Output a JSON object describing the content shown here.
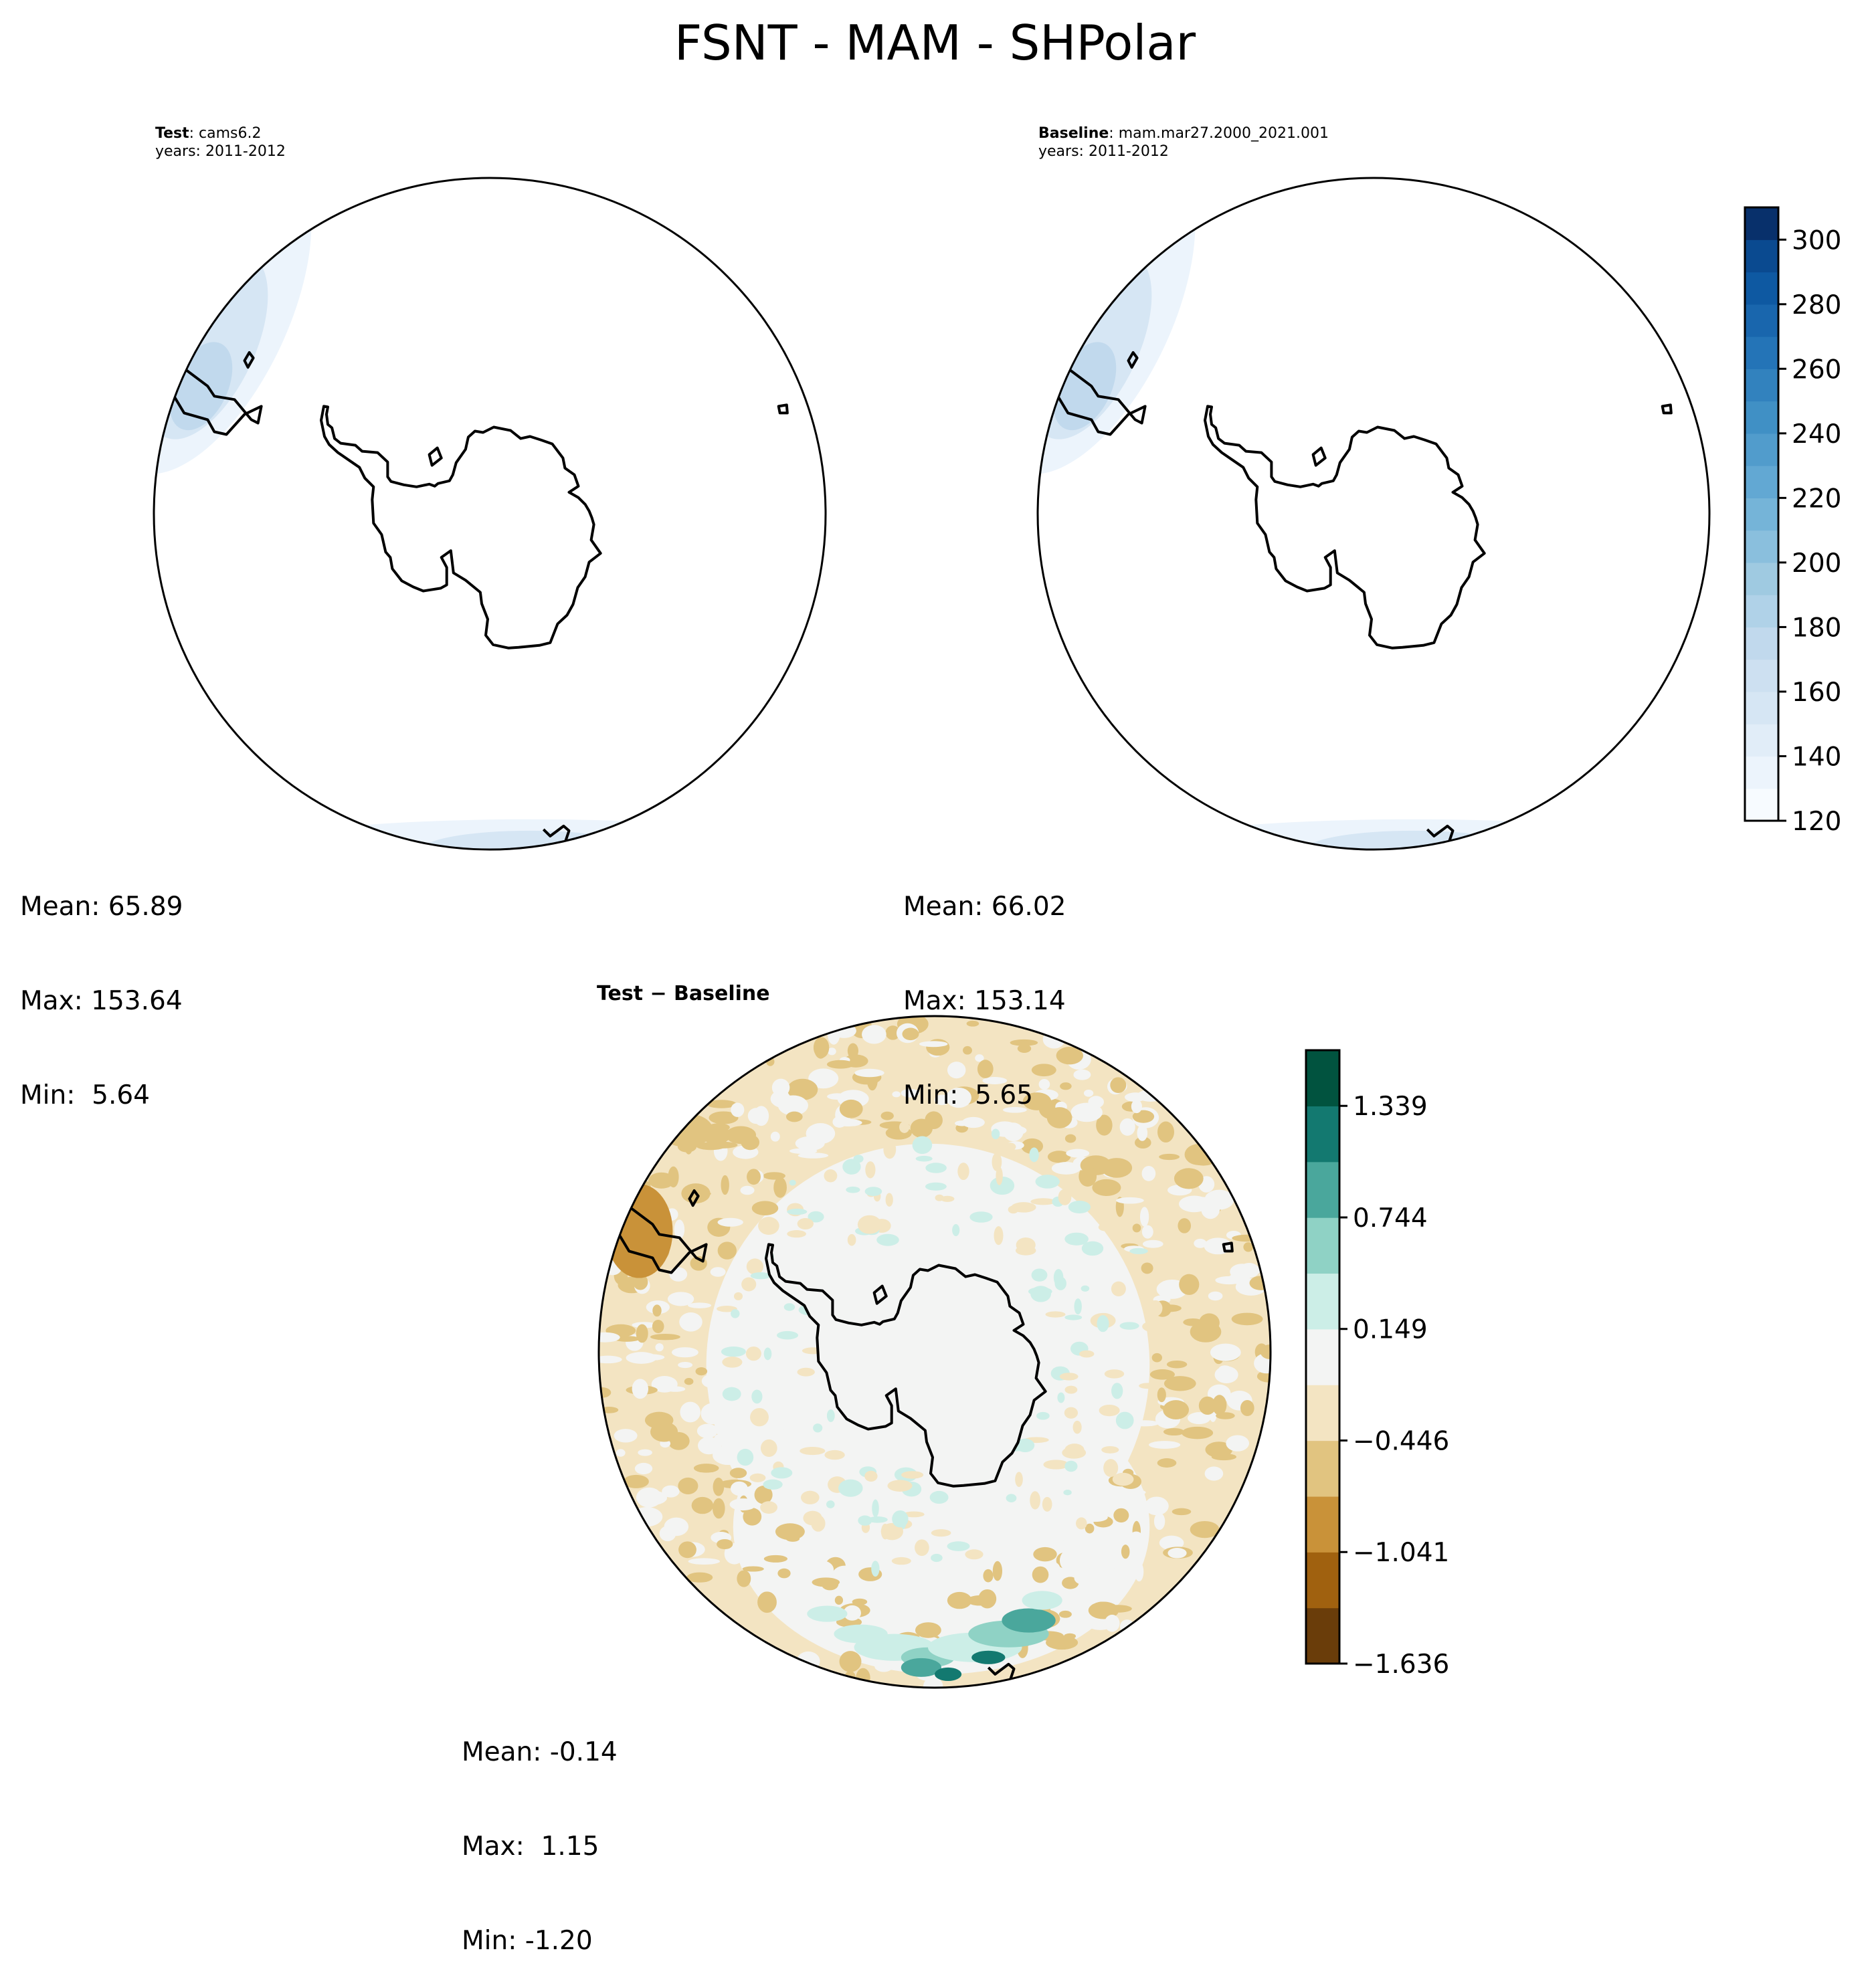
{
  "figure_title": "FSNT - MAM - SHPolar",
  "panels": {
    "test": {
      "label_bold": "Test",
      "label_rest": ": cams6.2",
      "years": "years: 2011-2012",
      "mean": "Mean: 65.89",
      "max": "Max: 153.64",
      "min": "Min:  5.64"
    },
    "baseline": {
      "label_bold": "Baseline",
      "label_rest": ": mam.mar27.2000_2021.001",
      "years": "years: 2011-2012",
      "mean": "Mean: 66.02",
      "max": "Max: 153.14",
      "min": "Min:  5.65"
    },
    "diff": {
      "title": "Test − Baseline",
      "mean": "Mean: -0.14",
      "max": "Max:  1.15",
      "min": "Min: -1.20"
    }
  },
  "colorbars": {
    "fields": {
      "ticks": [
        "120",
        "140",
        "160",
        "180",
        "200",
        "220",
        "240",
        "260",
        "280",
        "300"
      ],
      "range": [
        120,
        310
      ],
      "levels": 19,
      "colormap": "Blues"
    },
    "difference": {
      "ticks": [
        "−1.636",
        "−1.041",
        "−0.446",
        "0.149",
        "0.744",
        "1.339"
      ],
      "range": [
        -1.636,
        1.636
      ],
      "levels": 11,
      "colormap": "BrBG"
    }
  },
  "colors": {
    "blues": [
      "#f7fbff",
      "#ecf4fc",
      "#e1edf8",
      "#d6e6f4",
      "#cde0f1",
      "#c1d9ed",
      "#b0d2e8",
      "#9fcae1",
      "#8abfdd",
      "#75b4d8",
      "#62a8d3",
      "#519ccc",
      "#4090c5",
      "#3282be",
      "#2474b7",
      "#1966ad",
      "#0e59a2",
      "#0a4a90",
      "#08306b"
    ],
    "brbg": [
      "#6a3d0a",
      "#a0610f",
      "#c99239",
      "#e1c480",
      "#f3e4c2",
      "#f3f4f3",
      "#cceee7",
      "#8fd2c5",
      "#4aa79c",
      "#137970",
      "#01533f"
    ]
  }
}
